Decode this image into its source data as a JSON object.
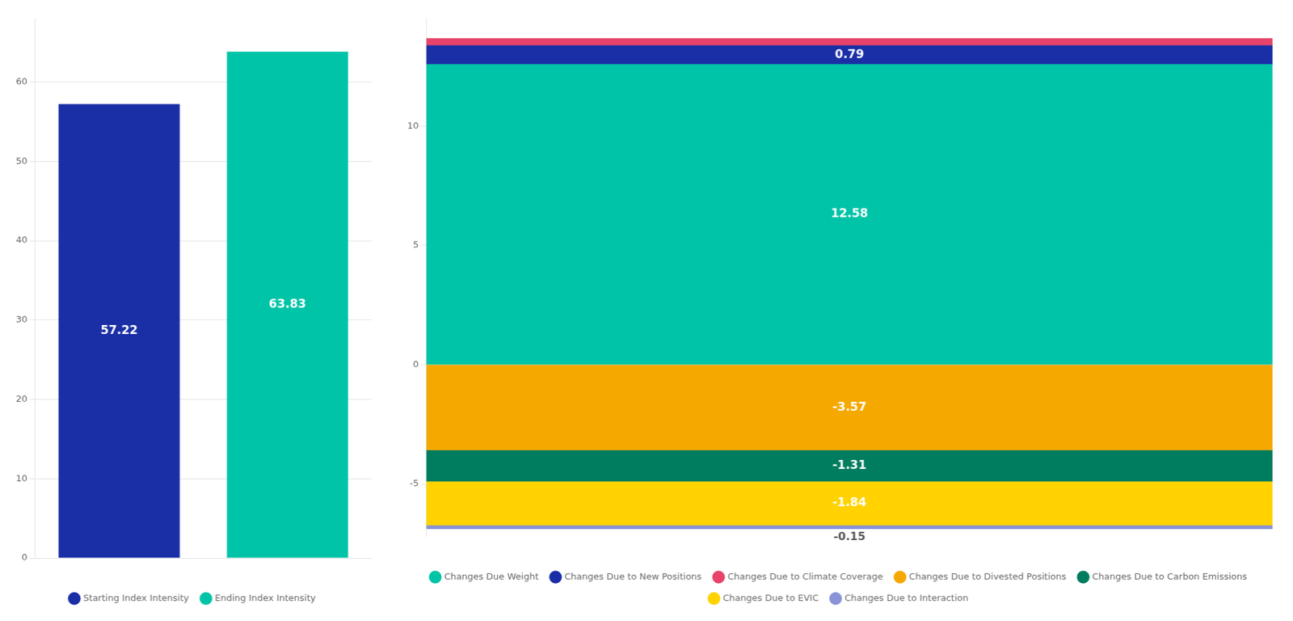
{
  "chart_data": [
    {
      "type": "bar",
      "categories": [
        null,
        null
      ],
      "series": [
        {
          "name": "Starting Index Intensity",
          "color": "#1a2ea6",
          "values": [
            57.22,
            null
          ]
        },
        {
          "name": "Ending Index Intensity",
          "color": "#00c4a7",
          "values": [
            null,
            63.83
          ]
        }
      ],
      "stacked": true,
      "ylim": [
        0,
        68
      ],
      "yticks": [
        0,
        10,
        20,
        30,
        40,
        50,
        60
      ],
      "grid": true,
      "legend": "bottom",
      "data_labels": true,
      "tick_labels": "y"
    },
    {
      "type": "bar",
      "categories": [
        null
      ],
      "series": [
        {
          "name": "Changes Due Weight",
          "color": "#00c4a7",
          "values": [
            12.58
          ]
        },
        {
          "name": "Changes Due to New Positions",
          "color": "#1a2ea6",
          "values": [
            0.79
          ]
        },
        {
          "name": "Changes Due to Climate Coverage",
          "color": "#e8436a",
          "values": [
            0.3
          ],
          "data_labels": false
        },
        {
          "name": "Changes Due to Divested Positions",
          "color": "#f5a800",
          "values": [
            -3.57
          ]
        },
        {
          "name": "Changes Due to Carbon Emissions",
          "color": "#007d5e",
          "values": [
            -1.31
          ]
        },
        {
          "name": "Changes Due to EVIC",
          "color": "#ffd200",
          "values": [
            -1.84
          ]
        },
        {
          "name": "Changes Due to Interaction",
          "color": "#8892d6",
          "values": [
            -0.15
          ]
        }
      ],
      "stacked": true,
      "ylim": [
        -7.2,
        14.5
      ],
      "yticks": [
        -5,
        0,
        5,
        10
      ],
      "grid": true,
      "legend": "bottom",
      "data_labels": true,
      "tick_labels": "y"
    }
  ]
}
